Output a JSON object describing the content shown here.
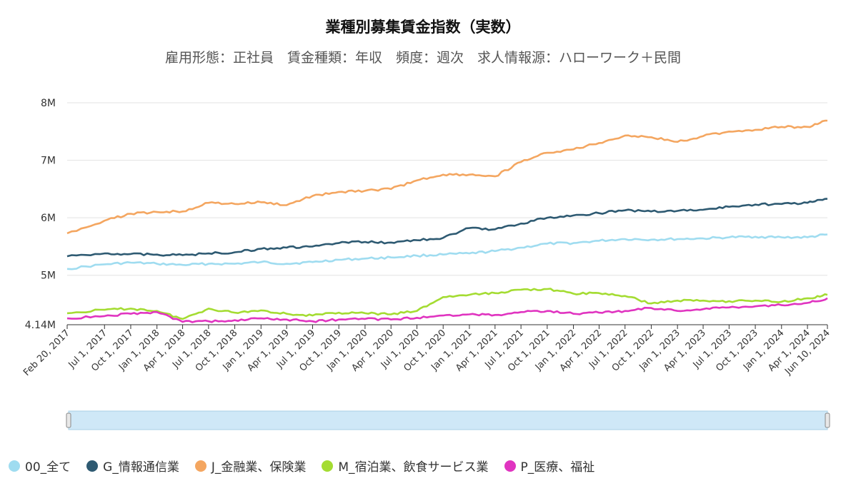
{
  "chart_data": {
    "type": "line",
    "title": "業種別募集賃金指数（実数）",
    "subtitle": "雇用形態：正社員　賃金種類：年収　頻度：週次　求人情報源：ハローワーク＋民間",
    "ylim": [
      4140000,
      8000000
    ],
    "y_ticks": [
      {
        "value": 8000000,
        "label": "8M"
      },
      {
        "value": 7000000,
        "label": "7M"
      },
      {
        "value": 6000000,
        "label": "6M"
      },
      {
        "value": 5000000,
        "label": "5M"
      },
      {
        "value": 4140000,
        "label": "4.14M"
      }
    ],
    "x_ticks": [
      "Feb 20, 2017",
      "Jul 1, 2017",
      "Oct 1, 2017",
      "Jan 1, 2018",
      "Apr 1, 2018",
      "Jul 1, 2018",
      "Oct 1, 2018",
      "Jan 1, 2019",
      "Apr 1, 2019",
      "Jul 1, 2019",
      "Oct 1, 2019",
      "Jan 1, 2020",
      "Apr 1, 2020",
      "Jul 1, 2020",
      "Oct 1, 2020",
      "Jan 1, 2021",
      "Apr 1, 2021",
      "Jul 1, 2021",
      "Oct 1, 2021",
      "Jan 1, 2022",
      "Apr 1, 2022",
      "Jul 1, 2022",
      "Oct 1, 2022",
      "Jan 1, 2023",
      "Apr 1, 2023",
      "Jul 1, 2023",
      "Oct 1, 2023",
      "Jan 1, 2024",
      "Apr 1, 2024",
      "Jun 10, 2024"
    ],
    "x": [
      "2017-02-20",
      "2017-07-01",
      "2017-10-01",
      "2018-01-01",
      "2018-04-01",
      "2018-07-01",
      "2018-10-01",
      "2019-01-01",
      "2019-04-01",
      "2019-07-01",
      "2019-10-01",
      "2020-01-01",
      "2020-04-01",
      "2020-07-01",
      "2020-10-01",
      "2021-01-01",
      "2021-04-01",
      "2021-07-01",
      "2021-10-01",
      "2022-01-01",
      "2022-04-01",
      "2022-07-01",
      "2022-10-01",
      "2023-01-01",
      "2023-04-01",
      "2023-07-01",
      "2023-10-01",
      "2024-01-01",
      "2024-04-01",
      "2024-06-10"
    ],
    "series": [
      {
        "name": "00_全て",
        "color": "#9fdcf0",
        "values": [
          5110000,
          5190000,
          5220000,
          5200000,
          5180000,
          5200000,
          5200000,
          5230000,
          5200000,
          5230000,
          5270000,
          5290000,
          5310000,
          5340000,
          5360000,
          5380000,
          5420000,
          5480000,
          5550000,
          5560000,
          5600000,
          5630000,
          5620000,
          5630000,
          5640000,
          5660000,
          5670000,
          5660000,
          5660000,
          5710000
        ]
      },
      {
        "name": "G_情報通信業",
        "color": "#2e5a72",
        "values": [
          5330000,
          5380000,
          5370000,
          5360000,
          5350000,
          5380000,
          5400000,
          5460000,
          5480000,
          5500000,
          5560000,
          5580000,
          5570000,
          5610000,
          5650000,
          5820000,
          5800000,
          5900000,
          6000000,
          6040000,
          6080000,
          6130000,
          6110000,
          6120000,
          6140000,
          6190000,
          6230000,
          6240000,
          6260000,
          6330000
        ]
      },
      {
        "name": "J_金融業、保険業",
        "color": "#f4a660",
        "values": [
          5730000,
          5950000,
          6070000,
          6100000,
          6110000,
          6260000,
          6240000,
          6270000,
          6220000,
          6380000,
          6450000,
          6470000,
          6500000,
          6650000,
          6750000,
          6750000,
          6720000,
          6970000,
          7130000,
          7190000,
          7300000,
          7430000,
          7400000,
          7320000,
          7420000,
          7500000,
          7530000,
          7580000,
          7580000,
          7690000
        ]
      },
      {
        "name": "M_宿泊業、飲食サービス業",
        "color": "#a4dc32",
        "values": [
          4340000,
          4400000,
          4420000,
          4380000,
          4240000,
          4420000,
          4350000,
          4390000,
          4330000,
          4300000,
          4350000,
          4340000,
          4320000,
          4380000,
          4620000,
          4660000,
          4690000,
          4750000,
          4760000,
          4680000,
          4690000,
          4640000,
          4510000,
          4560000,
          4560000,
          4550000,
          4560000,
          4540000,
          4600000,
          4660000
        ]
      },
      {
        "name": "P_医療、福祉",
        "color": "#e034c0",
        "values": [
          4250000,
          4290000,
          4330000,
          4360000,
          4190000,
          4200000,
          4220000,
          4250000,
          4230000,
          4200000,
          4230000,
          4240000,
          4230000,
          4260000,
          4300000,
          4320000,
          4310000,
          4360000,
          4380000,
          4330000,
          4350000,
          4380000,
          4430000,
          4380000,
          4410000,
          4440000,
          4460000,
          4480000,
          4520000,
          4600000
        ]
      }
    ]
  }
}
